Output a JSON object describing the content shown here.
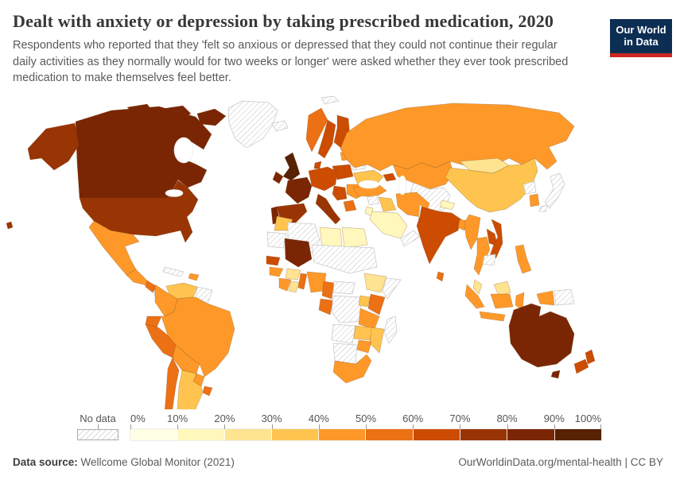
{
  "branding": {
    "logo_line1": "Our World",
    "logo_line2": "in Data",
    "logo_bg_color": "#0D2E53",
    "logo_accent_color": "#CB2722"
  },
  "footer": {
    "source_label": "Data source:",
    "source_text": " Wellcome Global Monitor (2021)",
    "link_text": "OurWorldinData.org/mental-health | CC BY"
  },
  "chart_data": {
    "type": "choropleth_map",
    "title": "Dealt with anxiety or depression by taking prescribed medication, 2020",
    "subtitle": "Respondents who reported that they 'felt so anxious or depressed that they could not continue their regular daily activities as they normally would for two weeks or longer' were asked whether they ever took prescribed medication to make themselves feel better.",
    "unit": "% of respondents",
    "legend": {
      "no_data_label": "No data",
      "tick_labels": [
        "0%",
        "10%",
        "20%",
        "30%",
        "40%",
        "50%",
        "60%",
        "70%",
        "80%",
        "90%",
        "100%"
      ],
      "bins": [
        {
          "range": "0–10%",
          "color": "#FFFFE5"
        },
        {
          "range": "10–20%",
          "color": "#FFF7BC"
        },
        {
          "range": "20–30%",
          "color": "#FEE391"
        },
        {
          "range": "30–40%",
          "color": "#FEC44F"
        },
        {
          "range": "40–50%",
          "color": "#FE9929"
        },
        {
          "range": "50–60%",
          "color": "#EC7014"
        },
        {
          "range": "60–70%",
          "color": "#CC4C02"
        },
        {
          "range": "70–80%",
          "color": "#993404"
        },
        {
          "range": "80–90%",
          "color": "#7A2604"
        },
        {
          "range": "90–100%",
          "color": "#572103"
        }
      ]
    },
    "regions": [
      {
        "id": "canada",
        "name": "Canada",
        "value_range": "80–90%"
      },
      {
        "id": "united-states",
        "name": "United States",
        "value_range": "70–80%"
      },
      {
        "id": "greenland",
        "name": "Greenland",
        "value_range": "No data"
      },
      {
        "id": "mexico",
        "name": "Mexico",
        "value_range": "40–50%"
      },
      {
        "id": "guatemala-honduras",
        "name": "Guatemala & Honduras",
        "value_range": "40–50%"
      },
      {
        "id": "nicaragua",
        "name": "Nicaragua",
        "value_range": "50–60%"
      },
      {
        "id": "costa-rica-panama",
        "name": "Costa Rica & Panama",
        "value_range": "No data"
      },
      {
        "id": "cuba",
        "name": "Cuba",
        "value_range": "No data"
      },
      {
        "id": "hispaniola",
        "name": "Dominican Republic",
        "value_range": "40–50%"
      },
      {
        "id": "venezuela",
        "name": "Venezuela",
        "value_range": "30–40%"
      },
      {
        "id": "guyanas",
        "name": "Guyana & Suriname",
        "value_range": "No data"
      },
      {
        "id": "colombia",
        "name": "Colombia",
        "value_range": "40–50%"
      },
      {
        "id": "ecuador",
        "name": "Ecuador",
        "value_range": "50–60%"
      },
      {
        "id": "peru",
        "name": "Peru",
        "value_range": "50–60%"
      },
      {
        "id": "brazil",
        "name": "Brazil",
        "value_range": "40–50%"
      },
      {
        "id": "bolivia",
        "name": "Bolivia",
        "value_range": "40–50%"
      },
      {
        "id": "paraguay",
        "name": "Paraguay",
        "value_range": "40–50%"
      },
      {
        "id": "uruguay",
        "name": "Uruguay",
        "value_range": "50–60%"
      },
      {
        "id": "argentina",
        "name": "Argentina",
        "value_range": "30–40%"
      },
      {
        "id": "chile",
        "name": "Chile",
        "value_range": "50–60%"
      },
      {
        "id": "iceland",
        "name": "Iceland",
        "value_range": "No data"
      },
      {
        "id": "united-kingdom",
        "name": "United Kingdom",
        "value_range": "90–100%"
      },
      {
        "id": "ireland",
        "name": "Ireland",
        "value_range": "80–90%"
      },
      {
        "id": "norway",
        "name": "Norway",
        "value_range": "50–60%"
      },
      {
        "id": "sweden",
        "name": "Sweden",
        "value_range": "60–70%"
      },
      {
        "id": "finland",
        "name": "Finland",
        "value_range": "60–70%"
      },
      {
        "id": "denmark",
        "name": "Denmark",
        "value_range": "60–70%"
      },
      {
        "id": "germany-central-europe",
        "name": "Germany & Central Europe",
        "value_range": "60–70%"
      },
      {
        "id": "poland",
        "name": "Poland",
        "value_range": "60–70%"
      },
      {
        "id": "france",
        "name": "France",
        "value_range": "80–90%"
      },
      {
        "id": "spain",
        "name": "Spain",
        "value_range": "70–80%"
      },
      {
        "id": "portugal",
        "name": "Portugal",
        "value_range": "80–90%"
      },
      {
        "id": "italy",
        "name": "Italy",
        "value_range": "70–80%"
      },
      {
        "id": "western-balkans",
        "name": "Western Balkans",
        "value_range": "60–70%"
      },
      {
        "id": "romania-bulgaria",
        "name": "Romania & Bulgaria",
        "value_range": "40–50%"
      },
      {
        "id": "greece",
        "name": "Greece",
        "value_range": "50–60%"
      },
      {
        "id": "baltic-states",
        "name": "Baltic states",
        "value_range": "40–50%"
      },
      {
        "id": "belarus",
        "name": "Belarus",
        "value_range": "No data"
      },
      {
        "id": "ukraine",
        "name": "Ukraine",
        "value_range": "30–40%"
      },
      {
        "id": "russia",
        "name": "Russia",
        "value_range": "40–50%"
      },
      {
        "id": "kazakhstan",
        "name": "Kazakhstan",
        "value_range": "40–50%"
      },
      {
        "id": "central-asia",
        "name": "Central Asia & Afghanistan",
        "value_range": "No data"
      },
      {
        "id": "pakistan",
        "name": "Pakistan",
        "value_range": "No data"
      },
      {
        "id": "caucasus",
        "name": "Caucasus",
        "value_range": "60–70%"
      },
      {
        "id": "turkey",
        "name": "Turkey",
        "value_range": "40–50%"
      },
      {
        "id": "syria",
        "name": "Syria",
        "value_range": "No data"
      },
      {
        "id": "iraq",
        "name": "Iraq",
        "value_range": "30–40%"
      },
      {
        "id": "iran",
        "name": "Iran",
        "value_range": "40–50%"
      },
      {
        "id": "saudi-arabia",
        "name": "Saudi Arabia",
        "value_range": "10–20%"
      },
      {
        "id": "israel-jordan",
        "name": "Israel & Jordan",
        "value_range": "10–20%"
      },
      {
        "id": "yemen-oman",
        "name": "Yemen & Oman",
        "value_range": "No data"
      },
      {
        "id": "morocco",
        "name": "Morocco",
        "value_range": "30–40%"
      },
      {
        "id": "mauritania",
        "name": "Mauritania",
        "value_range": "No data"
      },
      {
        "id": "algeria",
        "name": "Algeria",
        "value_range": "No data"
      },
      {
        "id": "libya",
        "name": "Libya",
        "value_range": "10–20%"
      },
      {
        "id": "egypt",
        "name": "Egypt",
        "value_range": "10–20%"
      },
      {
        "id": "mali",
        "name": "Mali",
        "value_range": "80–90%"
      },
      {
        "id": "sahel-belt",
        "name": "Niger, Chad & Sudan",
        "value_range": "No data"
      },
      {
        "id": "senegal",
        "name": "Senegal",
        "value_range": "60–70%"
      },
      {
        "id": "guinea",
        "name": "Guinea",
        "value_range": "40–50%"
      },
      {
        "id": "ivory-coast",
        "name": "Cote d'Ivoire",
        "value_range": "40–50%"
      },
      {
        "id": "ghana",
        "name": "Ghana",
        "value_range": "20–30%"
      },
      {
        "id": "burkina-faso",
        "name": "Burkina Faso",
        "value_range": "20–30%"
      },
      {
        "id": "benin-togo",
        "name": "Benin & Togo",
        "value_range": "50–60%"
      },
      {
        "id": "nigeria",
        "name": "Nigeria",
        "value_range": "40–50%"
      },
      {
        "id": "cameroon",
        "name": "Cameroon",
        "value_range": "50–60%"
      },
      {
        "id": "central-african-republic",
        "name": "Central African Republic",
        "value_range": "No data"
      },
      {
        "id": "ethiopia",
        "name": "Ethiopia",
        "value_range": "20–30%"
      },
      {
        "id": "somalia",
        "name": "Somalia",
        "value_range": "No data"
      },
      {
        "id": "gabon-congo",
        "name": "Gabon & Congo",
        "value_range": "50–60%"
      },
      {
        "id": "dr-congo",
        "name": "Democratic Republic of Congo",
        "value_range": "No data"
      },
      {
        "id": "uganda",
        "name": "Uganda",
        "value_range": "30–40%"
      },
      {
        "id": "kenya",
        "name": "Kenya",
        "value_range": "50–60%"
      },
      {
        "id": "tanzania",
        "name": "Tanzania",
        "value_range": "40–50%"
      },
      {
        "id": "angola",
        "name": "Angola",
        "value_range": "No data"
      },
      {
        "id": "zambia",
        "name": "Zambia",
        "value_range": "30–40%"
      },
      {
        "id": "mozambique",
        "name": "Mozambique",
        "value_range": "30–40%"
      },
      {
        "id": "zimbabwe",
        "name": "Zimbabwe",
        "value_range": "40–50%"
      },
      {
        "id": "namibia-botswana",
        "name": "Namibia & Botswana",
        "value_range": "No data"
      },
      {
        "id": "south-africa",
        "name": "South Africa",
        "value_range": "40–50%"
      },
      {
        "id": "madagascar",
        "name": "Madagascar",
        "value_range": "No data"
      },
      {
        "id": "svalbard",
        "name": "Svalbard",
        "value_range": "No data"
      },
      {
        "id": "mongolia",
        "name": "Mongolia",
        "value_range": "20–30%"
      },
      {
        "id": "china",
        "name": "China",
        "value_range": "30–40%"
      },
      {
        "id": "nepal",
        "name": "Nepal",
        "value_range": "10–20%"
      },
      {
        "id": "india",
        "name": "India",
        "value_range": "60–70%"
      },
      {
        "id": "bangladesh",
        "name": "Bangladesh",
        "value_range": "40–50%"
      },
      {
        "id": "sri-lanka",
        "name": "Sri Lanka",
        "value_range": "50–60%"
      },
      {
        "id": "myanmar",
        "name": "Myanmar",
        "value_range": "40–50%"
      },
      {
        "id": "thailand",
        "name": "Thailand",
        "value_range": "40–50%"
      },
      {
        "id": "laos",
        "name": "Laos",
        "value_range": "60–70%"
      },
      {
        "id": "vietnam",
        "name": "Vietnam",
        "value_range": "60–70%"
      },
      {
        "id": "cambodia",
        "name": "Cambodia",
        "value_range": "No data"
      },
      {
        "id": "north-korea",
        "name": "North Korea",
        "value_range": "No data"
      },
      {
        "id": "south-korea",
        "name": "South Korea",
        "value_range": "40–50%"
      },
      {
        "id": "japan",
        "name": "Japan",
        "value_range": "No data"
      },
      {
        "id": "philippines",
        "name": "Philippines",
        "value_range": "40–50%"
      },
      {
        "id": "malaysia",
        "name": "Malaysia",
        "value_range": "20–30%"
      },
      {
        "id": "indonesia",
        "name": "Indonesia",
        "value_range": "40–50%"
      },
      {
        "id": "papua-new-guinea",
        "name": "Papua New Guinea",
        "value_range": "No data"
      },
      {
        "id": "australia",
        "name": "Australia",
        "value_range": "80–90%"
      },
      {
        "id": "new-zealand",
        "name": "New Zealand",
        "value_range": "60–70%"
      }
    ]
  }
}
